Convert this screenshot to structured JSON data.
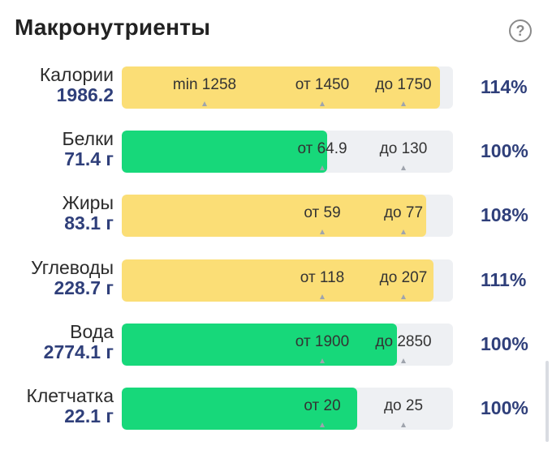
{
  "header": {
    "title": "Макронутриенты",
    "help_icon": "?"
  },
  "colors": {
    "over": "#fbde76",
    "ok": "#17d87a",
    "track": "#eef0f3",
    "accent": "#2f3f7a"
  },
  "rows": [
    {
      "label": "Калории",
      "value": "1986.2",
      "percent": "114%",
      "fill": 0.96,
      "color": "yellow",
      "marks": [
        {
          "text": "min 1258",
          "at": 0.25
        },
        {
          "text": "от 1450",
          "at": 0.605
        },
        {
          "text": "до 1750",
          "at": 0.85
        }
      ]
    },
    {
      "label": "Белки",
      "value": "71.4 г",
      "percent": "100%",
      "fill": 0.62,
      "color": "green",
      "marks": [
        {
          "text": "от 64.9",
          "at": 0.605
        },
        {
          "text": "до 130",
          "at": 0.85
        }
      ]
    },
    {
      "label": "Жиры",
      "value": "83.1 г",
      "percent": "108%",
      "fill": 0.92,
      "color": "yellow",
      "marks": [
        {
          "text": "от 59",
          "at": 0.605
        },
        {
          "text": "до 77",
          "at": 0.85
        }
      ]
    },
    {
      "label": "Углеводы",
      "value": "228.7 г",
      "percent": "111%",
      "fill": 0.94,
      "color": "yellow",
      "marks": [
        {
          "text": "от 118",
          "at": 0.605
        },
        {
          "text": "до 207",
          "at": 0.85
        }
      ]
    },
    {
      "label": "Вода",
      "value": "2774.1 г",
      "percent": "100%",
      "fill": 0.83,
      "color": "green",
      "marks": [
        {
          "text": "от 1900",
          "at": 0.605
        },
        {
          "text": "до 2850",
          "at": 0.85
        }
      ]
    },
    {
      "label": "Клетчатка",
      "value": "22.1 г",
      "percent": "100%",
      "fill": 0.71,
      "color": "green",
      "marks": [
        {
          "text": "от 20",
          "at": 0.605
        },
        {
          "text": "до 25",
          "at": 0.85
        }
      ]
    }
  ]
}
